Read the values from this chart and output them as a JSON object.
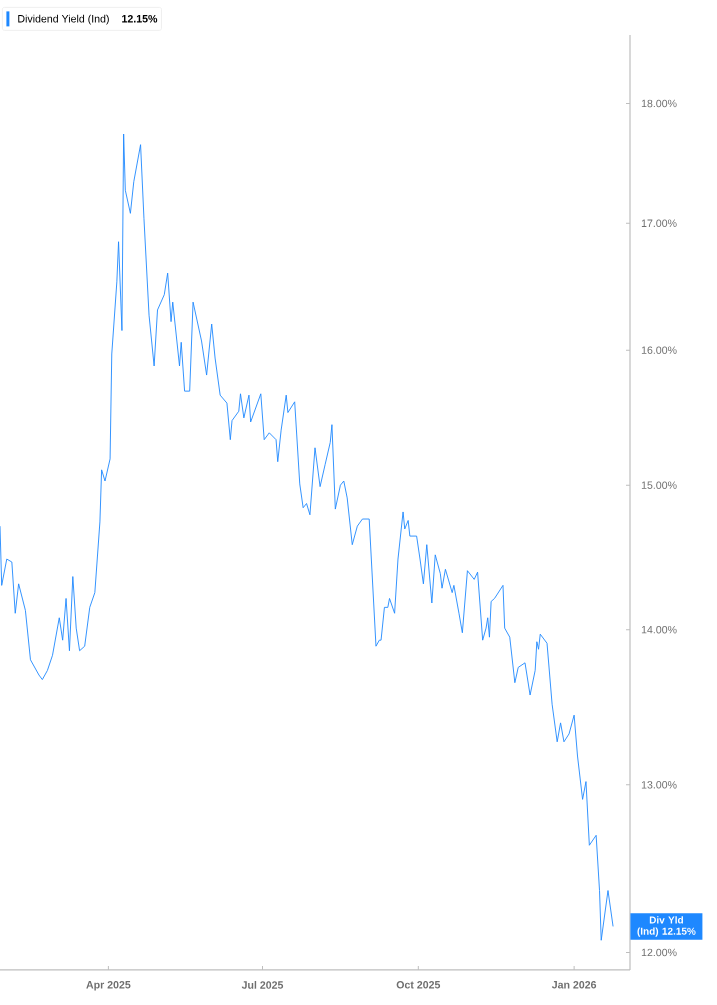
{
  "chart_data": {
    "type": "line",
    "x": [
      "2025-01-27",
      "2025-01-28",
      "2025-01-31",
      "2025-02-03",
      "2025-02-05",
      "2025-02-07",
      "2025-02-11",
      "2025-02-14",
      "2025-02-19",
      "2025-02-21",
      "2025-02-24",
      "2025-02-27",
      "2025-03-03",
      "2025-03-05",
      "2025-03-07",
      "2025-03-09",
      "2025-03-11",
      "2025-03-13",
      "2025-03-15",
      "2025-03-18",
      "2025-03-21",
      "2025-03-24",
      "2025-03-27",
      "2025-03-28",
      "2025-03-30",
      "2025-04-02",
      "2025-04-03",
      "2025-04-06",
      "2025-04-07",
      "2025-04-09",
      "2025-04-10",
      "2025-04-11",
      "2025-04-14",
      "2025-04-16",
      "2025-04-20",
      "2025-04-22",
      "2025-04-25",
      "2025-04-28",
      "2025-04-30",
      "2025-05-04",
      "2025-05-06",
      "2025-05-08",
      "2025-05-09",
      "2025-05-13",
      "2025-05-14",
      "2025-05-16",
      "2025-05-19",
      "2025-05-21",
      "2025-05-26",
      "2025-05-29",
      "2025-06-01",
      "2025-06-03",
      "2025-06-06",
      "2025-06-10",
      "2025-06-12",
      "2025-06-13",
      "2025-06-17",
      "2025-06-18",
      "2025-06-20",
      "2025-06-23",
      "2025-06-24",
      "2025-06-30",
      "2025-07-02",
      "2025-07-05",
      "2025-07-09",
      "2025-07-10",
      "2025-07-12",
      "2025-07-15",
      "2025-07-16",
      "2025-07-20",
      "2025-07-23",
      "2025-07-25",
      "2025-07-27",
      "2025-07-29",
      "2025-08-01",
      "2025-08-04",
      "2025-08-07",
      "2025-08-10",
      "2025-08-11",
      "2025-08-13",
      "2025-08-16",
      "2025-08-18",
      "2025-08-20",
      "2025-08-23",
      "2025-08-26",
      "2025-08-29",
      "2025-09-02",
      "2025-09-06",
      "2025-09-08",
      "2025-09-09",
      "2025-09-11",
      "2025-09-13",
      "2025-09-14",
      "2025-09-17",
      "2025-09-19",
      "2025-09-22",
      "2025-09-23",
      "2025-09-25",
      "2025-09-26",
      "2025-09-30",
      "2025-10-02",
      "2025-10-04",
      "2025-10-06",
      "2025-10-09",
      "2025-10-11",
      "2025-10-14",
      "2025-10-15",
      "2025-10-17",
      "2025-10-21",
      "2025-10-22",
      "2025-10-25",
      "2025-10-27",
      "2025-10-30",
      "2025-11-03",
      "2025-11-05",
      "2025-11-08",
      "2025-11-10",
      "2025-11-11",
      "2025-11-12",
      "2025-11-13",
      "2025-11-15",
      "2025-11-20",
      "2025-11-21",
      "2025-11-24",
      "2025-11-27",
      "2025-11-29",
      "2025-12-03",
      "2025-12-06",
      "2025-12-09",
      "2025-12-10",
      "2025-12-11",
      "2025-12-12",
      "2025-12-16",
      "2025-12-19",
      "2025-12-22",
      "2025-12-24",
      "2025-12-26",
      "2025-12-29",
      "2026-01-01",
      "2026-01-03",
      "2026-01-06",
      "2026-01-08",
      "2026-01-10",
      "2026-01-14",
      "2026-01-16",
      "2026-01-17",
      "2026-01-21",
      "2026-01-24"
    ],
    "series": [
      {
        "name": "Dividend Yield (Ind)",
        "color": "#1e88ff",
        "values": [
          14.71,
          14.3,
          14.48,
          14.46,
          14.11,
          14.31,
          14.13,
          13.8,
          13.7,
          13.67,
          13.73,
          13.83,
          14.08,
          13.93,
          14.21,
          13.86,
          14.36,
          14.01,
          13.86,
          13.89,
          14.15,
          14.25,
          14.74,
          15.11,
          15.03,
          15.19,
          15.97,
          16.53,
          16.85,
          16.15,
          17.74,
          17.27,
          17.08,
          17.34,
          17.65,
          17.04,
          16.27,
          15.88,
          16.31,
          16.43,
          16.6,
          16.22,
          16.37,
          15.88,
          16.06,
          15.69,
          15.69,
          16.37,
          16.07,
          15.81,
          16.2,
          15.94,
          15.66,
          15.6,
          15.33,
          15.47,
          15.54,
          15.67,
          15.49,
          15.66,
          15.46,
          15.67,
          15.33,
          15.38,
          15.33,
          15.17,
          15.4,
          15.66,
          15.53,
          15.61,
          15.01,
          14.84,
          14.87,
          14.79,
          15.27,
          14.99,
          15.15,
          15.31,
          15.44,
          14.83,
          15.0,
          15.03,
          14.91,
          14.58,
          14.71,
          14.76,
          14.76,
          13.89,
          13.93,
          13.93,
          14.15,
          14.15,
          14.21,
          14.11,
          14.48,
          14.81,
          14.69,
          14.75,
          14.64,
          14.64,
          14.48,
          14.31,
          14.58,
          14.18,
          14.51,
          14.38,
          14.28,
          14.41,
          14.25,
          14.3,
          14.11,
          13.98,
          14.4,
          14.34,
          14.39,
          13.93,
          14.01,
          14.08,
          13.95,
          14.19,
          14.21,
          14.3,
          14.01,
          13.95,
          13.65,
          13.75,
          13.78,
          13.57,
          13.73,
          13.92,
          13.87,
          13.97,
          13.91,
          13.51,
          13.27,
          13.39,
          13.27,
          13.32,
          13.44,
          13.18,
          12.91,
          13.02,
          12.63,
          12.69,
          12.36,
          12.07,
          12.36,
          12.15
        ]
      }
    ],
    "xlim": [
      "2025-01-27",
      "2026-02-03"
    ],
    "xticks": [
      {
        "value": "2025-04-01",
        "label": "Apr 2025"
      },
      {
        "value": "2025-07-01",
        "label": "Jul 2025"
      },
      {
        "value": "2025-10-01",
        "label": "Oct 2025"
      },
      {
        "value": "2026-01-01",
        "label": "Jan 2026"
      }
    ],
    "ylim": [
      11.9,
      18.6
    ],
    "yticks": [
      {
        "value": 12,
        "label": "12.00%"
      },
      {
        "value": 13,
        "label": "13.00%"
      },
      {
        "value": 14,
        "label": "14.00%"
      },
      {
        "value": 15,
        "label": "15.00%"
      },
      {
        "value": 16,
        "label": "16.00%"
      },
      {
        "value": 17,
        "label": "17.00%"
      },
      {
        "value": 18,
        "label": "18.00%"
      }
    ],
    "log": "y",
    "legend": "top left",
    "annotations": [
      "12.15%",
      {
        "text": "Div Yld (Ind) 12.15%",
        "x": "2026-01-24",
        "y": 12.15
      }
    ]
  }
}
